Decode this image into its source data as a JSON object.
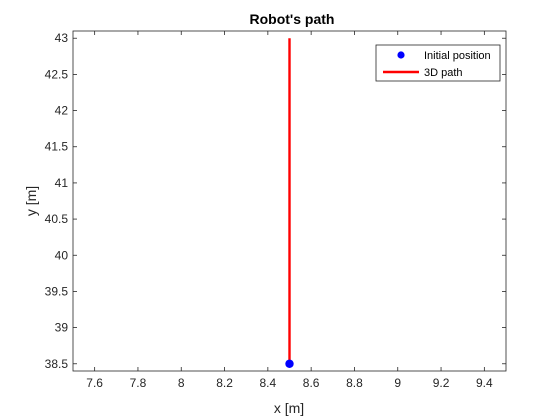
{
  "chart_data": {
    "type": "line",
    "title": "Robot's path",
    "xlabel": "x [m]",
    "ylabel": "y [m]",
    "xlim": [
      7.5,
      9.5
    ],
    "ylim": [
      38.4,
      43.1
    ],
    "xticks": [
      "7.6",
      "7.8",
      "8",
      "8.2",
      "8.4",
      "8.6",
      "8.8",
      "9",
      "9.2",
      "9.4"
    ],
    "yticks": [
      "38.5",
      "39",
      "39.5",
      "40",
      "40.5",
      "41",
      "41.5",
      "42",
      "42.5",
      "43"
    ],
    "grid": false,
    "legend_position": "top-right",
    "series": [
      {
        "name": "Initial position",
        "kind": "marker",
        "color": "#0000ff",
        "points": [
          [
            8.5,
            38.5
          ]
        ]
      },
      {
        "name": "3D path",
        "kind": "line",
        "color": "#ff0000",
        "points": [
          [
            8.5,
            38.5
          ],
          [
            8.5,
            43.0
          ]
        ]
      }
    ]
  }
}
